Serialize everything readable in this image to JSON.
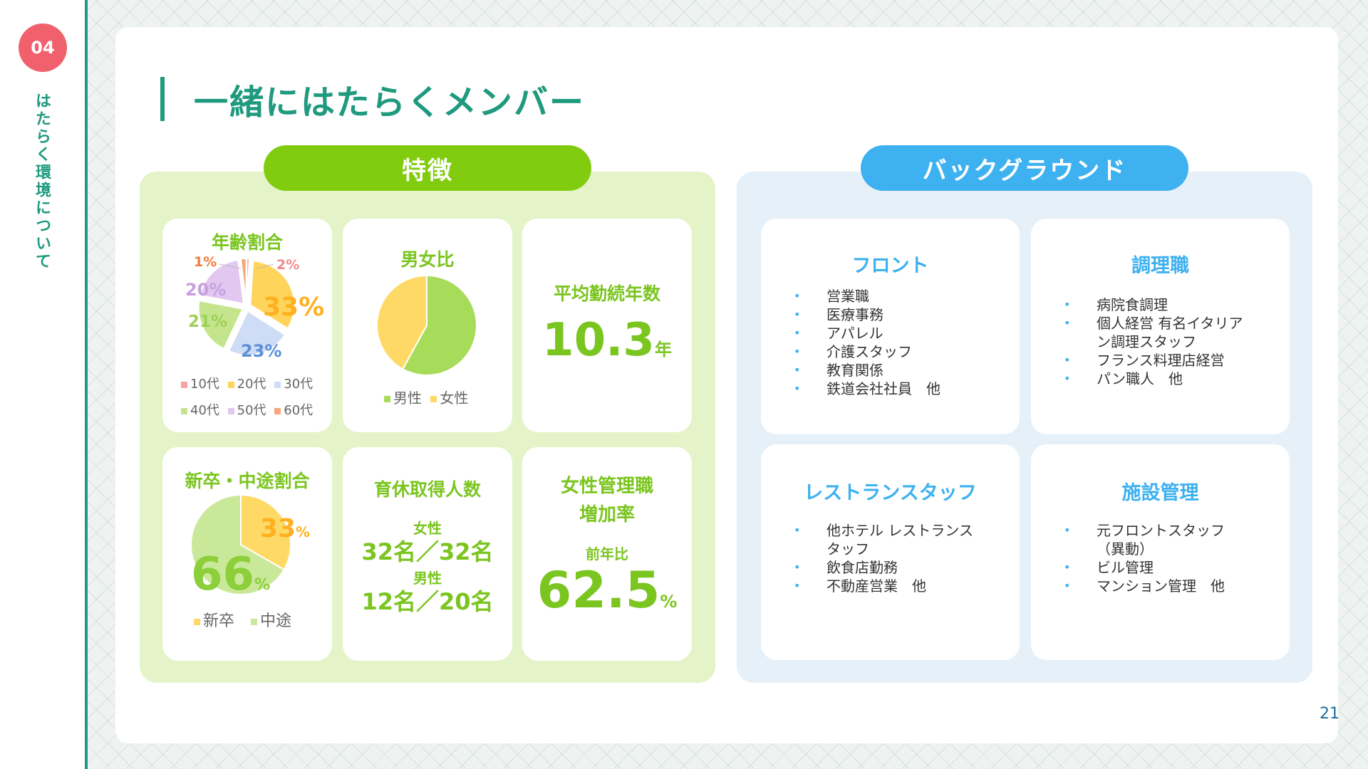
{
  "section": {
    "number": "04",
    "label": "はたらく環境について"
  },
  "page": {
    "title": "一緒にはたらくメンバー",
    "number": "21"
  },
  "features": {
    "heading": "特徴",
    "age": {
      "title": "年齢割合",
      "labels": {
        "teens": "1%",
        "twenties": "33%",
        "thirties": "23%",
        "forties": "21%",
        "fifties": "20%",
        "sixties": "2%"
      },
      "legend": [
        "10代",
        "20代",
        "30代",
        "40代",
        "50代",
        "60代"
      ]
    },
    "gender": {
      "title": "男女比",
      "legend": [
        "男性",
        "女性"
      ]
    },
    "tenure": {
      "title": "平均勤続年数",
      "value": "10.3",
      "unit": "年"
    },
    "hire": {
      "title": "新卒・中途割合",
      "new_grad": "33",
      "mid_career": "66",
      "percent": "%",
      "legend": [
        "新卒",
        "中途"
      ]
    },
    "leave": {
      "title": "育休取得人数",
      "female_label": "女性",
      "female_value": "32名／32名",
      "male_label": "男性",
      "male_value": "12名／20名"
    },
    "manager": {
      "title_line1": "女性管理職",
      "title_line2": "増加率",
      "sub": "前年比",
      "value": "62.5",
      "unit": "%"
    }
  },
  "background": {
    "heading": "バックグラウンド",
    "front": {
      "title": "フロント",
      "items": [
        "営業職",
        "医療事務",
        "アパレル",
        "介護スタッフ",
        "教育関係",
        "鉄道会社社員　他"
      ]
    },
    "cook": {
      "title": "調理職",
      "items": [
        "病院食調理",
        "個人経営 有名イタリアン調理スタッフ",
        "フランス料理店経営",
        "パン職人　他"
      ]
    },
    "restaurant": {
      "title": "レストランスタッフ",
      "items": [
        "他ホテル レストランスタッフ",
        "飲食店勤務",
        "不動産営業　他"
      ]
    },
    "facility": {
      "title": "施設管理",
      "items": [
        "元フロントスタッフ（異動）",
        "ビル管理",
        "マンション管理　他"
      ]
    }
  },
  "chart_data": [
    {
      "type": "pie",
      "title": "年齢割合",
      "categories": [
        "10代",
        "20代",
        "30代",
        "40代",
        "50代",
        "60代"
      ],
      "values": [
        1,
        33,
        23,
        21,
        20,
        2
      ],
      "colors": [
        "#f7a3a3",
        "#ffd45a",
        "#cfdcf5",
        "#c4e58c",
        "#e2c8f0",
        "#f5a77a"
      ]
    },
    {
      "type": "pie",
      "title": "男女比",
      "categories": [
        "男性",
        "女性"
      ],
      "values": [
        58,
        42
      ],
      "colors": [
        "#a7dc5a",
        "#ffd966"
      ]
    },
    {
      "type": "pie",
      "title": "新卒・中途割合",
      "categories": [
        "新卒",
        "中途"
      ],
      "values": [
        33,
        66
      ],
      "colors": [
        "#ffd966",
        "#c9e89a"
      ]
    }
  ],
  "colors": {
    "accent": "#1f9a7e",
    "green": "#82cc10",
    "blue": "#3eb1f0",
    "badge": "#f0616d"
  }
}
